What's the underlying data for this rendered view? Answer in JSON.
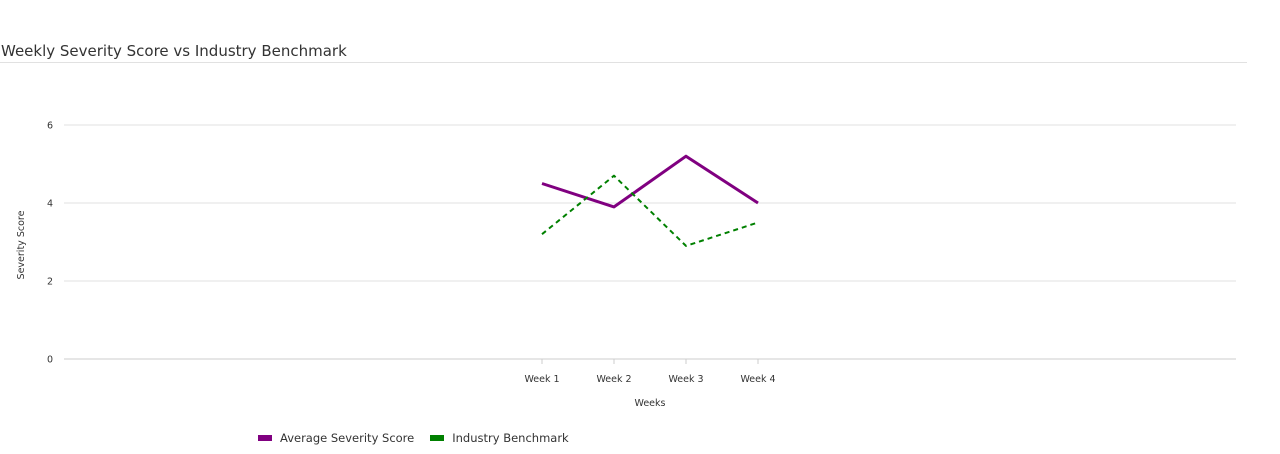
{
  "chart_data": {
    "type": "line",
    "title": "Weekly Severity Score vs Industry Benchmark",
    "xlabel": "Weeks",
    "ylabel": "Severity Score",
    "categories": [
      "Week 1",
      "Week 2",
      "Week 3",
      "Week 4"
    ],
    "ylim": [
      0,
      7
    ],
    "yticks": [
      0,
      2,
      4,
      6
    ],
    "grid": true,
    "legend_position": "bottom-left",
    "series": [
      {
        "name": "Average Severity Score",
        "values": [
          4.5,
          3.9,
          5.2,
          4.0
        ],
        "color": "#800080",
        "line_style": "solid"
      },
      {
        "name": "Industry Benchmark",
        "values": [
          3.2,
          4.7,
          2.9,
          3.5
        ],
        "color": "#008000",
        "line_style": "dashed"
      }
    ]
  }
}
